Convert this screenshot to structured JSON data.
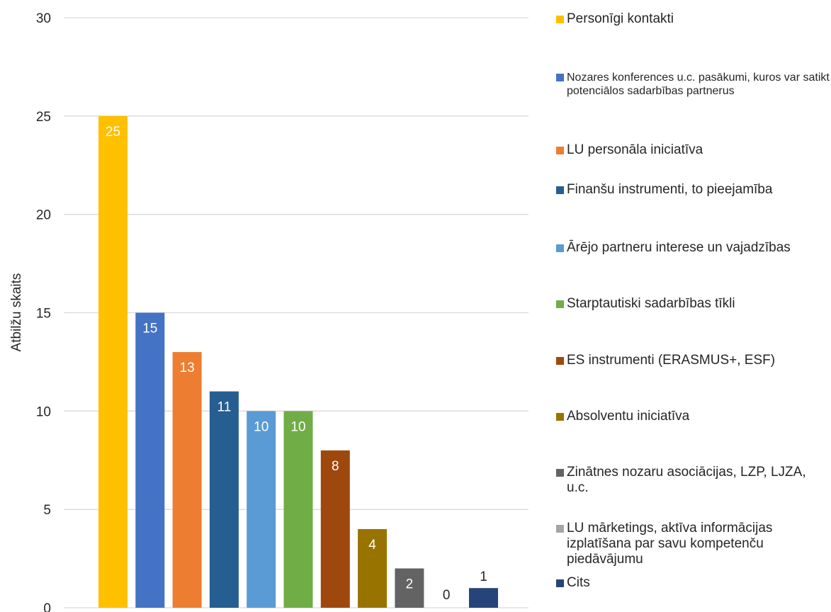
{
  "chart_data": {
    "type": "bar",
    "title": "",
    "xlabel": "",
    "ylabel": "Atbilžu skaits",
    "ylim": [
      0,
      30
    ],
    "yticks": [
      0,
      5,
      10,
      15,
      20,
      25,
      30
    ],
    "grid": true,
    "legend_position": "right",
    "categories": [
      "Personīgi kontakti",
      "Nozares konferences u.c. pasākumi, kuros var satikt potenciālos sadarbības partnerus",
      "LU personāla iniciatīva",
      "Finanšu instrumenti, to pieejamība",
      "Ārējo partneru interese un vajadzības",
      "Starptautiski sadarbības tīkli",
      "ES instrumenti (ERASMUS+, ESF)",
      "Absolventu iniciatīva",
      "Zinātnes nozaru asociācijas, LZP, LJZA, u.c.",
      "LU mārketings, aktīva informācijas izplatīšana par savu kompetenču piedāvājumu",
      "Cits"
    ],
    "values": [
      25,
      15,
      13,
      11,
      10,
      10,
      8,
      4,
      2,
      0,
      1
    ],
    "colors": [
      "#FFC000",
      "#4472C4",
      "#ED7D31",
      "#255E91",
      "#5B9BD5",
      "#70AD47",
      "#9E480E",
      "#997300",
      "#636363",
      "#A5A5A5",
      "#264478"
    ],
    "label_colors": [
      "#ffffff",
      "#ffffff",
      "#ffffff",
      "#ffffff",
      "#ffffff",
      "#ffffff",
      "#ffffff",
      "#ffffff",
      "#ffffff",
      "#262626",
      "#262626"
    ],
    "label_positions": [
      "inside",
      "inside",
      "inside",
      "inside",
      "inside",
      "inside",
      "inside",
      "inside",
      "inside",
      "above",
      "above"
    ],
    "legend_text_size": [
      "big",
      "small",
      "big",
      "big",
      "big",
      "big",
      "big",
      "big",
      "big",
      "big",
      "big"
    ]
  }
}
